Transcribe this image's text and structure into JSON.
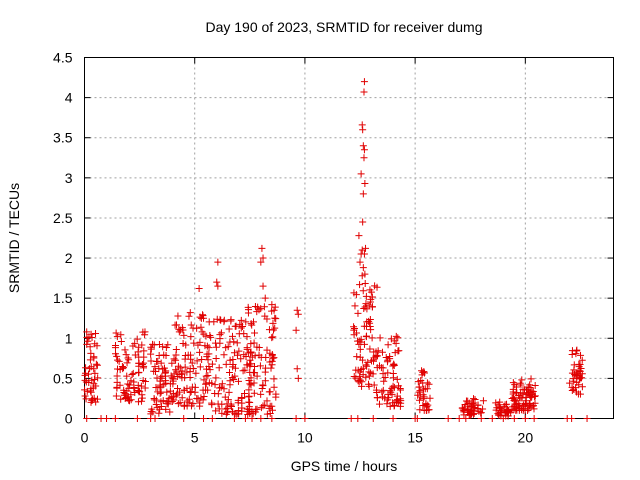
{
  "chart_data": {
    "type": "scatter",
    "title": "Day 190 of 2023, SRMTID for receiver dumg",
    "xlabel": "GPS time / hours",
    "ylabel": "SRMTID / TECUs",
    "xlim": [
      0,
      24
    ],
    "ylim": [
      0,
      4.5
    ],
    "x_ticks": [
      0,
      5,
      10,
      15,
      20
    ],
    "x_tick_labels": [
      "0",
      "5",
      "10",
      "15",
      "20"
    ],
    "y_ticks": [
      0,
      0.5,
      1,
      1.5,
      2,
      2.5,
      3,
      3.5,
      4,
      4.5
    ],
    "y_tick_labels": [
      "0",
      "0.5",
      "1",
      "1.5",
      "2",
      "2.5",
      "3",
      "3.5",
      "4",
      "4.5"
    ],
    "grid": true,
    "marker": "plus",
    "marker_color": "#e00000",
    "clusters": [
      {
        "x_start": 0.0,
        "x_end": 0.6,
        "y_low": 0.2,
        "y_high": 1.05,
        "count": 45
      },
      {
        "x_start": 1.4,
        "x_end": 2.8,
        "y_low": 0.2,
        "y_high": 1.1,
        "count": 85
      },
      {
        "x_start": 3.0,
        "x_end": 4.0,
        "y_low": 0.05,
        "y_high": 0.95,
        "count": 70
      },
      {
        "x_start": 4.0,
        "x_end": 5.6,
        "y_low": 0.15,
        "y_high": 1.3,
        "count": 110
      },
      {
        "x_start": 5.6,
        "x_end": 7.6,
        "y_low": 0.05,
        "y_high": 1.25,
        "count": 130
      },
      {
        "x_start": 7.4,
        "x_end": 8.7,
        "y_low": 0.05,
        "y_high": 1.4,
        "count": 85
      },
      {
        "x_start": 12.2,
        "x_end": 13.3,
        "y_low": 0.4,
        "y_high": 1.8,
        "count": 80
      },
      {
        "x_start": 13.2,
        "x_end": 14.4,
        "y_low": 0.15,
        "y_high": 1.05,
        "count": 70
      },
      {
        "x_start": 15.1,
        "x_end": 15.7,
        "y_low": 0.1,
        "y_high": 0.6,
        "count": 35
      },
      {
        "x_start": 17.1,
        "x_end": 18.1,
        "y_low": 0.04,
        "y_high": 0.25,
        "count": 45
      },
      {
        "x_start": 18.6,
        "x_end": 19.4,
        "y_low": 0.03,
        "y_high": 0.22,
        "count": 35
      },
      {
        "x_start": 19.4,
        "x_end": 20.5,
        "y_low": 0.1,
        "y_high": 0.5,
        "count": 80
      },
      {
        "x_start": 22.0,
        "x_end": 22.6,
        "y_low": 0.3,
        "y_high": 0.88,
        "count": 40
      }
    ],
    "points": [
      [
        0.1,
        1.08
      ],
      [
        0.3,
        1.05
      ],
      [
        0.5,
        1.06
      ],
      [
        0.1,
        0.0
      ],
      [
        0.75,
        0.0
      ],
      [
        1.0,
        0.0
      ],
      [
        1.4,
        0.0
      ],
      [
        2.4,
        0.0
      ],
      [
        3.0,
        0.0
      ],
      [
        3.2,
        0.0
      ],
      [
        4.5,
        0.0
      ],
      [
        5.4,
        0.0
      ],
      [
        5.8,
        0.0
      ],
      [
        6.8,
        0.0
      ],
      [
        7.3,
        0.0
      ],
      [
        7.6,
        0.0
      ],
      [
        8.0,
        0.0
      ],
      [
        8.5,
        0.0
      ],
      [
        9.6,
        0.0
      ],
      [
        10.0,
        0.0
      ],
      [
        12.1,
        0.0
      ],
      [
        12.4,
        0.0
      ],
      [
        13.1,
        0.0
      ],
      [
        14.0,
        0.0
      ],
      [
        15.0,
        0.0
      ],
      [
        15.1,
        0.0
      ],
      [
        16.5,
        0.0
      ],
      [
        17.0,
        0.0
      ],
      [
        17.3,
        0.0
      ],
      [
        18.0,
        0.0
      ],
      [
        18.5,
        0.0
      ],
      [
        19.0,
        0.0
      ],
      [
        19.5,
        0.0
      ],
      [
        20.0,
        0.0
      ],
      [
        20.4,
        0.0
      ],
      [
        21.9,
        0.0
      ],
      [
        22.1,
        0.0
      ],
      [
        22.8,
        0.0
      ],
      [
        5.2,
        1.62
      ],
      [
        6.05,
        1.95
      ],
      [
        6.0,
        1.7
      ],
      [
        6.05,
        1.65
      ],
      [
        4.8,
        1.32
      ],
      [
        5.4,
        1.25
      ],
      [
        8.05,
        2.12
      ],
      [
        8.1,
        2.0
      ],
      [
        8.0,
        1.95
      ],
      [
        8.1,
        1.65
      ],
      [
        8.2,
        1.5
      ],
      [
        8.5,
        1.42
      ],
      [
        8.6,
        1.35
      ],
      [
        9.65,
        1.35
      ],
      [
        9.7,
        1.3
      ],
      [
        9.6,
        1.1
      ],
      [
        9.65,
        0.62
      ],
      [
        9.7,
        0.5
      ],
      [
        12.7,
        4.2
      ],
      [
        12.68,
        4.07
      ],
      [
        12.6,
        3.66
      ],
      [
        12.62,
        3.6
      ],
      [
        12.65,
        3.4
      ],
      [
        12.7,
        3.35
      ],
      [
        12.68,
        3.25
      ],
      [
        12.55,
        3.05
      ],
      [
        12.72,
        2.93
      ],
      [
        12.65,
        2.8
      ],
      [
        12.62,
        2.45
      ],
      [
        12.45,
        2.28
      ],
      [
        12.6,
        2.1
      ],
      [
        12.55,
        2.05
      ],
      [
        12.7,
        2.05
      ],
      [
        12.75,
        2.12
      ],
      [
        12.5,
        1.95
      ],
      [
        12.65,
        1.88
      ],
      [
        12.72,
        1.8
      ],
      [
        12.6,
        1.78
      ]
    ]
  }
}
